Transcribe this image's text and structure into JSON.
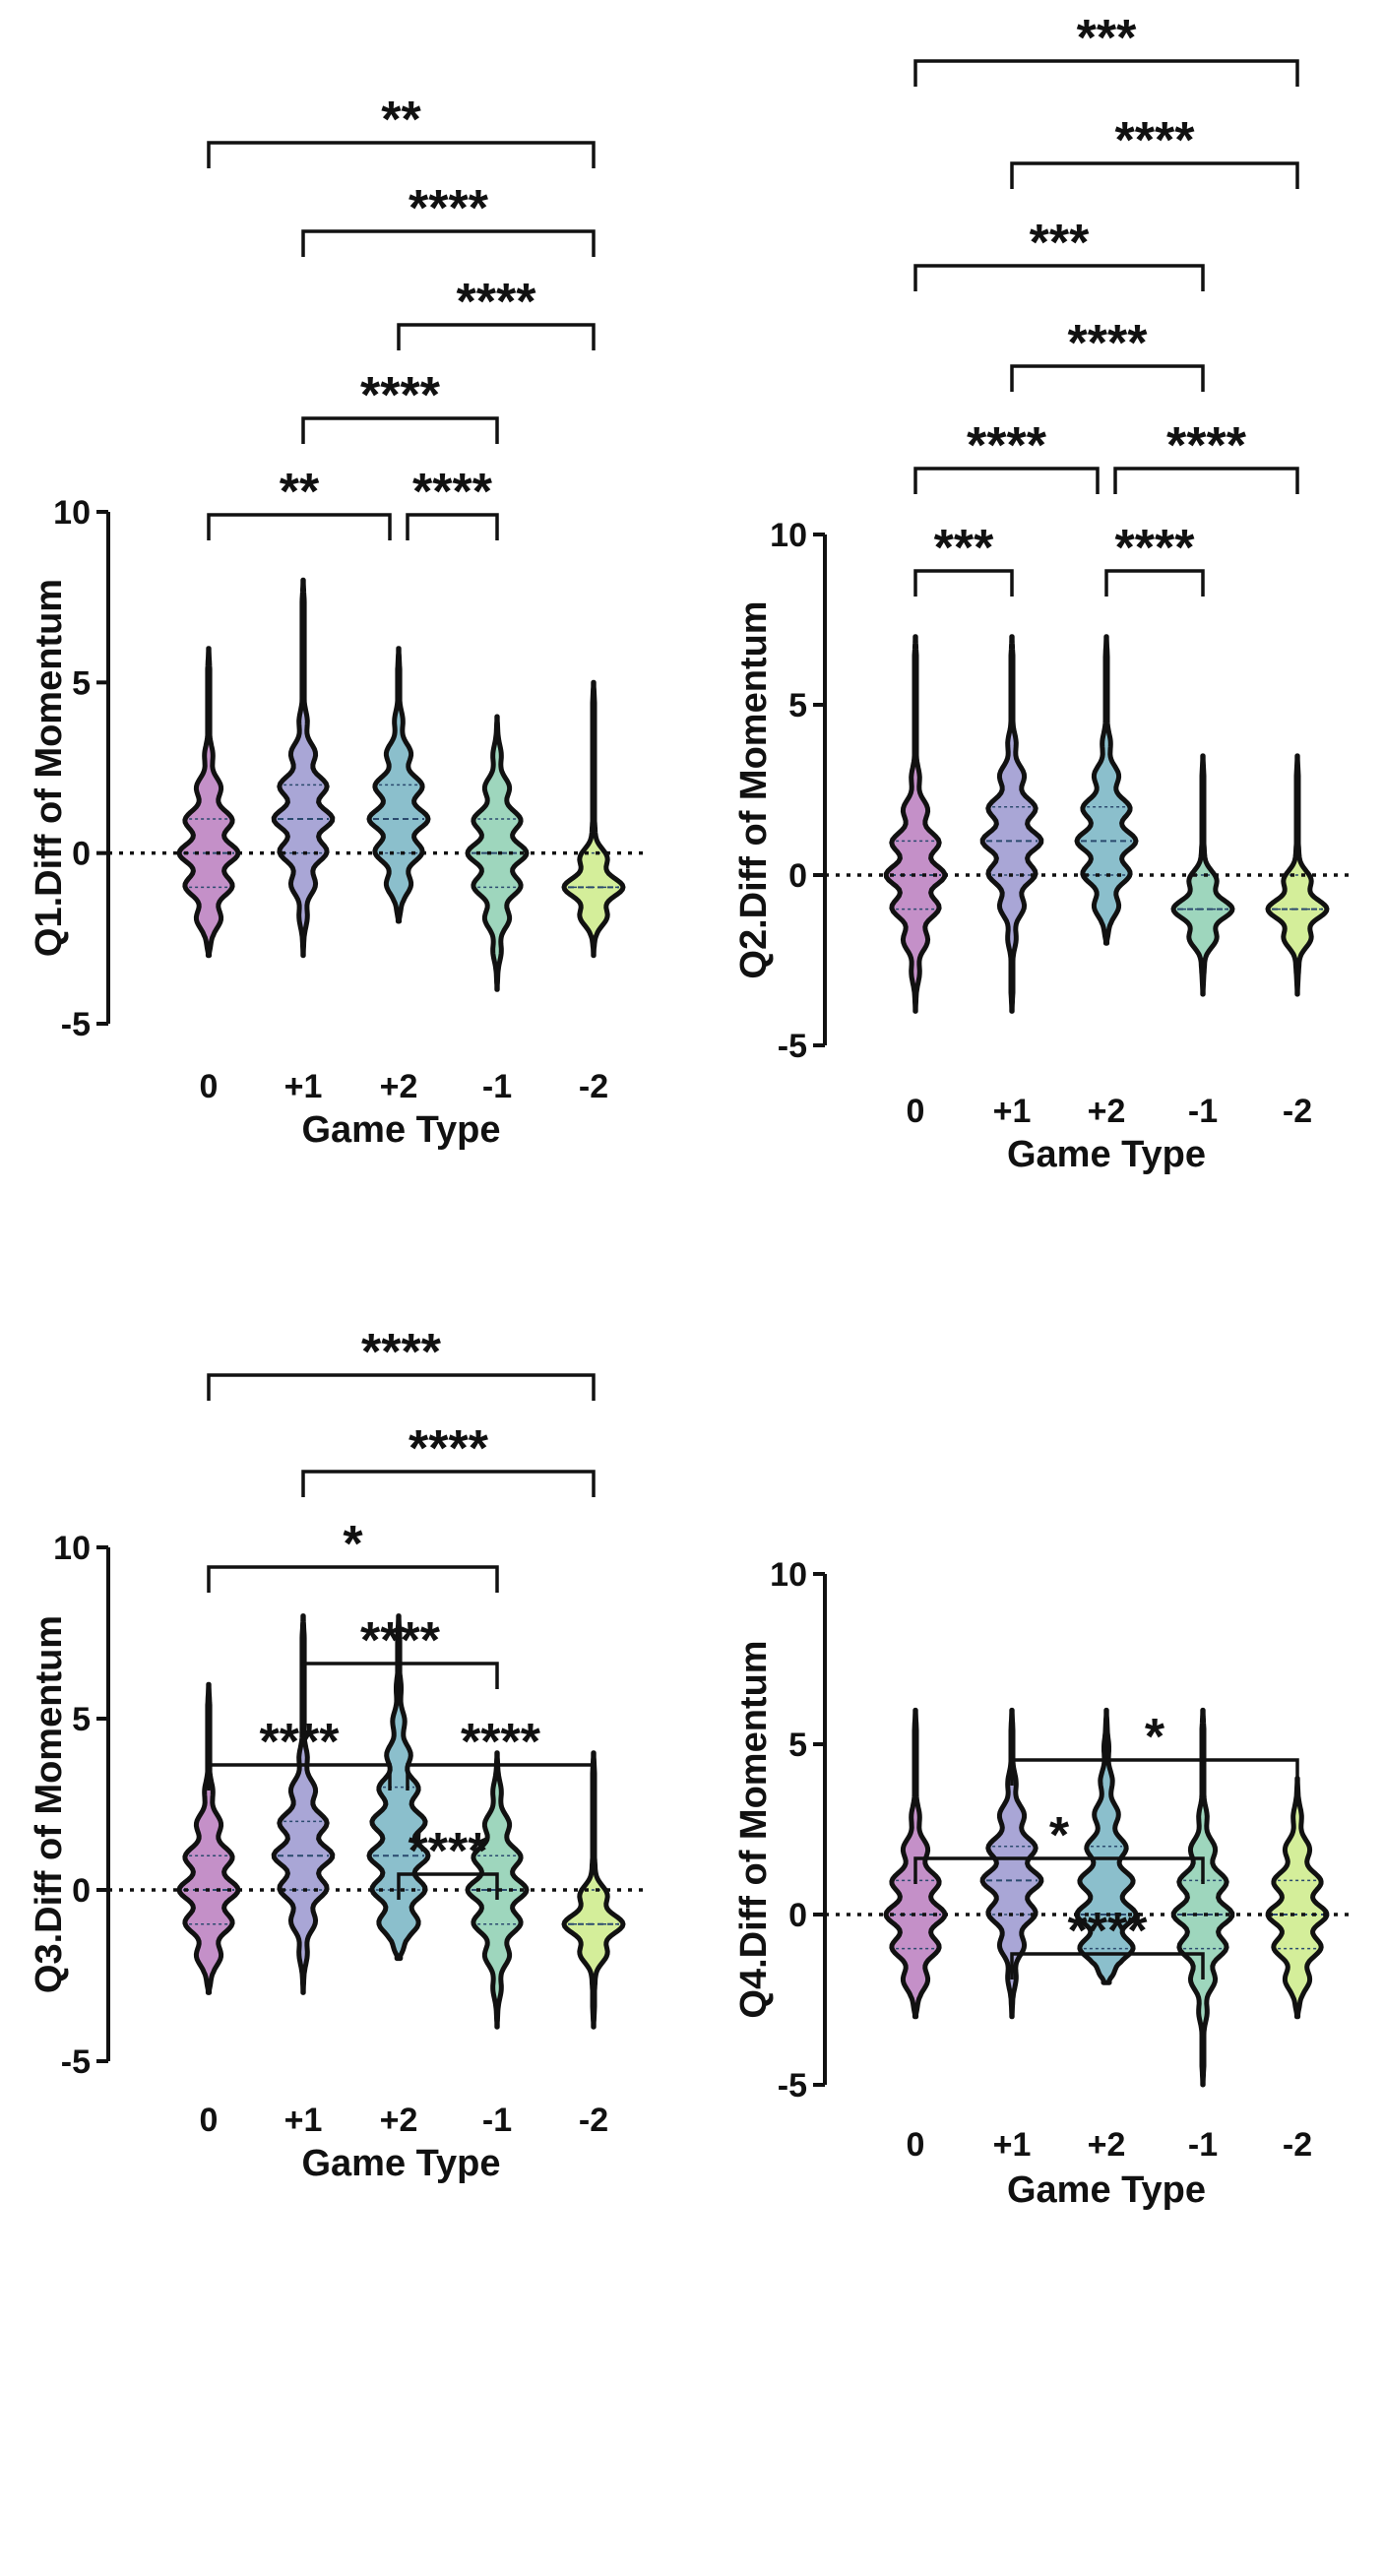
{
  "chart_data": [
    {
      "type": "violin",
      "ylabel": "Q1.Diff of Momentum",
      "xlabel": "Game Type",
      "categories": [
        "0",
        "+1",
        "+2",
        "-1",
        "-2"
      ],
      "yticks": [
        "10",
        "5",
        "0",
        "-5"
      ],
      "ylim": [
        -5,
        10
      ],
      "zero_line": "dotted",
      "colors": [
        "#c490c8",
        "#a9a6d6",
        "#8bbfcc",
        "#9ed6bd",
        "#d4ee9a"
      ],
      "series": [
        {
          "name": "0",
          "min": -3,
          "max": 6,
          "q1": -1,
          "median": 0,
          "q3": 1
        },
        {
          "name": "+1",
          "min": -3,
          "max": 8,
          "q1": 0,
          "median": 1,
          "q3": 2
        },
        {
          "name": "+2",
          "min": -2,
          "max": 6,
          "q1": 0,
          "median": 1,
          "q3": 2
        },
        {
          "name": "-1",
          "min": -4,
          "max": 4,
          "q1": -1,
          "median": 0,
          "q3": 1
        },
        {
          "name": "-2",
          "min": -3,
          "max": 5,
          "q1": -1,
          "median": -1,
          "q3": 0
        }
      ],
      "comparisons": [
        {
          "from": "0",
          "to": "-2",
          "label": "**"
        },
        {
          "from": "+1",
          "to": "-2",
          "label": "****"
        },
        {
          "from": "+2",
          "to": "-2",
          "label": "****"
        },
        {
          "from": "+1",
          "to": "-1",
          "label": "****"
        },
        {
          "from": "0",
          "to": "+2",
          "label": "**"
        },
        {
          "from": "+2",
          "to": "-1",
          "label": "****"
        }
      ]
    },
    {
      "type": "violin",
      "ylabel": "Q2.Diff of Momentum",
      "xlabel": "Game Type",
      "categories": [
        "0",
        "+1",
        "+2",
        "-1",
        "-2"
      ],
      "yticks": [
        "10",
        "5",
        "0",
        "-5"
      ],
      "ylim": [
        -5,
        10
      ],
      "zero_line": "dotted",
      "colors": [
        "#c490c8",
        "#a9a6d6",
        "#8bbfcc",
        "#9ed6bd",
        "#d4ee9a"
      ],
      "series": [
        {
          "name": "0",
          "min": -4,
          "max": 7,
          "q1": -1,
          "median": 0,
          "q3": 1
        },
        {
          "name": "+1",
          "min": -4,
          "max": 7,
          "q1": 0,
          "median": 1,
          "q3": 2
        },
        {
          "name": "+2",
          "min": -2,
          "max": 7,
          "q1": 0,
          "median": 1,
          "q3": 2
        },
        {
          "name": "-1",
          "min": -3.5,
          "max": 3.5,
          "q1": -1,
          "median": -1,
          "q3": 0
        },
        {
          "name": "-2",
          "min": -3.5,
          "max": 3.5,
          "q1": -1,
          "median": -1,
          "q3": 0
        }
      ],
      "comparisons": [
        {
          "from": "0",
          "to": "-2",
          "label": "***"
        },
        {
          "from": "+1",
          "to": "-2",
          "label": "****"
        },
        {
          "from": "0",
          "to": "-1",
          "label": "***"
        },
        {
          "from": "+1",
          "to": "-1",
          "label": "****"
        },
        {
          "from": "0",
          "to": "+2",
          "label": "****"
        },
        {
          "from": "+2",
          "to": "-2",
          "label": "****"
        },
        {
          "from": "0",
          "to": "+1",
          "label": "***"
        },
        {
          "from": "+2",
          "to": "-1",
          "label": "****"
        }
      ]
    },
    {
      "type": "violin",
      "ylabel": "Q3.Diff of Momentum",
      "xlabel": "Game Type",
      "categories": [
        "0",
        "+1",
        "+2",
        "-1",
        "-2"
      ],
      "yticks": [
        "10",
        "5",
        "0",
        "-5"
      ],
      "ylim": [
        -5,
        10
      ],
      "zero_line": "dotted",
      "colors": [
        "#c490c8",
        "#a9a6d6",
        "#8bbfcc",
        "#9ed6bd",
        "#d4ee9a"
      ],
      "series": [
        {
          "name": "0",
          "min": -3,
          "max": 6,
          "q1": -1,
          "median": 0,
          "q3": 1
        },
        {
          "name": "+1",
          "min": -3,
          "max": 8,
          "q1": 0,
          "median": 1,
          "q3": 2
        },
        {
          "name": "+2",
          "min": -2,
          "max": 8,
          "q1": 0,
          "median": 1,
          "q3": 3
        },
        {
          "name": "-1",
          "min": -4,
          "max": 4,
          "q1": -1,
          "median": 0,
          "q3": 1
        },
        {
          "name": "-2",
          "min": -4,
          "max": 4,
          "q1": -1,
          "median": -1,
          "q3": 0
        }
      ],
      "comparisons": [
        {
          "from": "0",
          "to": "-2",
          "label": "****"
        },
        {
          "from": "+1",
          "to": "-2",
          "label": "****"
        },
        {
          "from": "0",
          "to": "-1",
          "label": "*"
        },
        {
          "from": "+1",
          "to": "-1",
          "label": "****"
        },
        {
          "from": "0",
          "to": "+2",
          "label": "****"
        },
        {
          "from": "+2",
          "to": "-2",
          "label": "****"
        },
        {
          "from": "+2",
          "to": "-1",
          "label": "****"
        }
      ]
    },
    {
      "type": "violin",
      "ylabel": "Q4.Diff of Momentum",
      "xlabel": "Game Type",
      "categories": [
        "0",
        "+1",
        "+2",
        "-1",
        "-2"
      ],
      "yticks": [
        "10",
        "5",
        "0",
        "-5"
      ],
      "ylim": [
        -5,
        10
      ],
      "zero_line": "dotted",
      "colors": [
        "#c490c8",
        "#a9a6d6",
        "#8bbfcc",
        "#9ed6bd",
        "#d4ee9a"
      ],
      "series": [
        {
          "name": "0",
          "min": -3,
          "max": 6,
          "q1": -1,
          "median": 0,
          "q3": 1
        },
        {
          "name": "+1",
          "min": -3,
          "max": 6,
          "q1": 0,
          "median": 1,
          "q3": 2
        },
        {
          "name": "+2",
          "min": -2,
          "max": 6,
          "q1": -1,
          "median": 0,
          "q3": 2
        },
        {
          "name": "-1",
          "min": -5,
          "max": 6,
          "q1": -1,
          "median": 0,
          "q3": 1
        },
        {
          "name": "-2",
          "min": -3,
          "max": 4,
          "q1": -1,
          "median": 0,
          "q3": 1
        }
      ],
      "comparisons": [
        {
          "from": "+1",
          "to": "-2",
          "label": "*"
        },
        {
          "from": "0",
          "to": "-1",
          "label": "*"
        },
        {
          "from": "+1",
          "to": "-1",
          "label": "****"
        }
      ]
    }
  ]
}
